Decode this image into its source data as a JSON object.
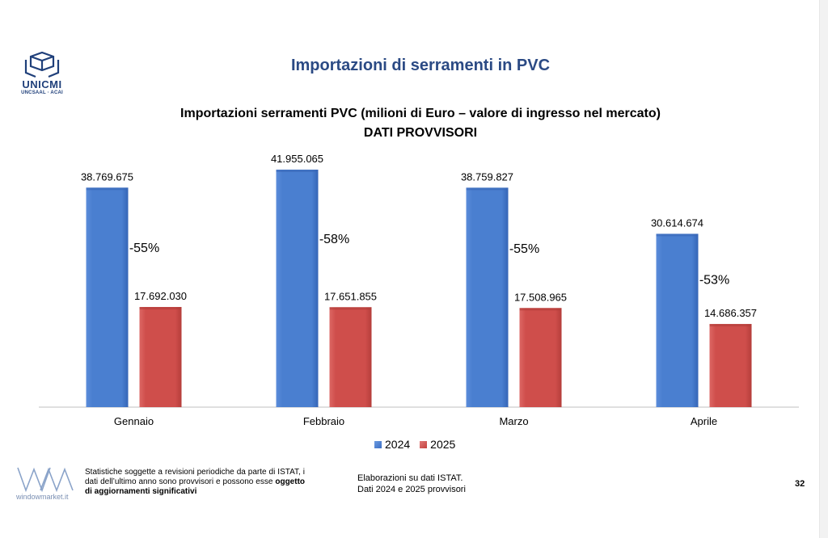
{
  "logo": {
    "name": "UNICMI",
    "sub": "UNCSAAL · ACAI"
  },
  "slide_title": "Importazioni di serramenti in PVC",
  "chart_data": {
    "type": "bar",
    "title": "Importazioni serramenti PVC (milioni di Euro – valore di ingresso nel mercato)",
    "subtitle": "DATI PROVVISORI",
    "categories": [
      "Gennaio",
      "Febbraio",
      "Marzo",
      "Aprile"
    ],
    "series": [
      {
        "name": "2024",
        "color": "#4a7fd0",
        "values": [
          38769675,
          41955065,
          38759827,
          30614674
        ],
        "labels": [
          "38.769.675",
          "41.955.065",
          "38.759.827",
          "30.614.674"
        ]
      },
      {
        "name": "2025",
        "color": "#cf4e4b",
        "values": [
          17692030,
          17651855,
          17508965,
          14686357
        ],
        "labels": [
          "17.692.030",
          "17.651.855",
          "17.508.965",
          "14.686.357"
        ]
      }
    ],
    "annotations": [
      "-55%",
      "-58%",
      "-55%",
      "-53%"
    ],
    "ylim": [
      0,
      41955065
    ],
    "legend": "bottom"
  },
  "footer": {
    "logo_text": "windowmarket.it",
    "note_left_part1": "Statistiche soggette a revisioni periodiche da parte di ISTAT, i dati dell’ultimo anno sono provvisori e possono esse",
    "note_left_bold": "oggetto di aggiornamenti significativi",
    "note_center_line1": "Elaborazioni su dati ISTAT.",
    "note_center_line2": "Dati 2024 e 2025  provvisori",
    "page_number": "32"
  }
}
